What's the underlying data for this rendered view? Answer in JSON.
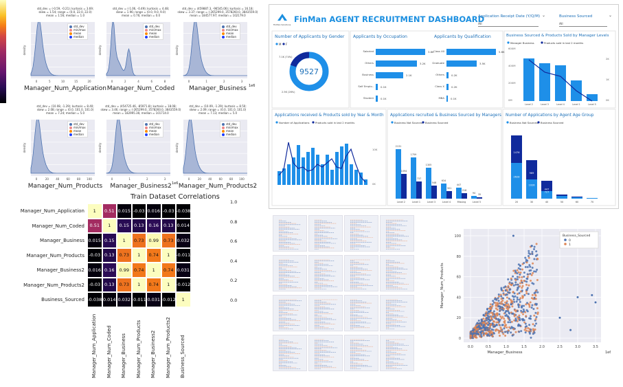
{
  "distributions": [
    {
      "name": "Manager_Num_Application",
      "stats": "std_dev = (-0.59, -0.21); kurtosis = 3.69;\nskew = 1.54; range = (0.0, 22.0, 22.0)\nmean = 1.56; median = 1.0",
      "xticks": [
        "0",
        "5",
        "10",
        "15",
        "20"
      ],
      "ylabel": "density"
    },
    {
      "name": "Manager_Num_Coded",
      "stats": "std_dev = (-1.06, -0.49); kurtosis = 4.48;\nskew = 1.96; range = (0.0, 9.0, 9.0)\nmean = 0.76; median = 0.0",
      "xticks": [
        "0",
        "2",
        "4",
        "6",
        "8"
      ],
      "ylabel": "density"
    },
    {
      "name": "Manager_Business",
      "stats": "std_dev = (459887.3, -96545.06); kurtosis = 16.18;\nskew = 3.37; range = (-265299.0, 3578260.0, 3843559.0)\nmean = 184577.97; median = 102179.0",
      "xticks": [
        "0",
        "1",
        "2",
        "3"
      ],
      "ylabel": "density",
      "offset": "1e6"
    },
    {
      "name": "Manager_Num_Products",
      "stats": "std_dev = (10.08, -1.29); kurtosis = 8.40;\nskew = 2.08; range = (0.0, 101.0, 101.0)\nmean = 7.24; median = 5.0",
      "xticks": [
        "0",
        "20",
        "40",
        "60",
        "80",
        "100"
      ],
      "ylabel": "density"
    },
    {
      "name": "Manager_Business2",
      "stats": "std_dev = (454725.46, -85971.8); kurtosis = 18.08;\nskew = 3.46; range = (-265299.0, 3578260.0, 3843559.0)\nmean = 182995.36; median = 101714.0",
      "xticks": [
        "0",
        "1",
        "2",
        "3"
      ],
      "ylabel": "density",
      "offset": "1e6"
    },
    {
      "name": "Manager_Num_Products2",
      "stats": "std_dev = (10.09, -1.29); kurtosis = 8.50;\nskew = 2.09; range = (0.0, 101.0, 101.0)\nmean = 7.13; median = 5.0",
      "xticks": [
        "0",
        "20",
        "40",
        "60",
        "80",
        "100"
      ],
      "ylabel": "density"
    }
  ],
  "dist_legend": [
    "std_dev",
    "min/max",
    "mean",
    "median"
  ],
  "chart_data": [
    {
      "type": "heatmap",
      "title": "Train Dataset Correlations",
      "labels": [
        "Manager_Num_Application",
        "Manager_Num_Coded",
        "Manager_Business",
        "Manager_Num_Products",
        "Manager_Business2",
        "Manager_Num_Products2",
        "Business_Sourced"
      ],
      "values": [
        [
          1,
          0.51,
          0.015,
          -0.03,
          0.016,
          -0.03,
          -0.038
        ],
        [
          0.51,
          1,
          0.15,
          0.13,
          0.16,
          0.13,
          0.014
        ],
        [
          0.015,
          0.15,
          1,
          0.73,
          0.99,
          0.73,
          0.032
        ],
        [
          -0.03,
          0.13,
          0.73,
          1,
          0.74,
          1,
          -0.011
        ],
        [
          0.016,
          0.16,
          0.99,
          0.74,
          1,
          0.74,
          0.031
        ],
        [
          -0.03,
          0.13,
          0.73,
          1,
          0.74,
          1,
          -0.012
        ],
        [
          -0.038,
          0.014,
          0.032,
          -0.011,
          0.031,
          -0.012,
          1
        ]
      ],
      "colorbar_ticks": [
        "1.0",
        "0.8",
        "0.6",
        "0.4",
        "0.2",
        "0.0"
      ]
    },
    {
      "type": "scatter",
      "xlabel": "Manager_Business",
      "ylabel": "Manager_Num_Products",
      "x_offset": "1e6",
      "xticks": [
        "0.0",
        "0.5",
        "1.0",
        "1.5",
        "2.0",
        "2.5",
        "3.0",
        "3.5"
      ],
      "yticks": [
        "0",
        "20",
        "40",
        "60",
        "80",
        "100"
      ],
      "legend_title": "Business_Sourced",
      "legend": [
        "0",
        "1"
      ],
      "colors": [
        "#4c72b0",
        "#dd8452"
      ]
    }
  ],
  "dashboard": {
    "title": "FinMan AGENT RECRUITMENT DASHBOARD",
    "logo_text": "FinMan Solutions",
    "filter1_label": "Application Receipt Date (Y/Q/M)",
    "filter1_value": "All",
    "filter2_label": "Business Sourced",
    "filter2_value": "All",
    "gender": {
      "title": "Number of Applicants by Gender",
      "legend": [
        "M",
        "F"
      ],
      "total": "9527",
      "label_m": "7.1K (74%)",
      "label_f": "2.5K (26%)"
    },
    "occupation": {
      "title": "Applicants by Occupation",
      "categories": [
        "Salaried",
        "Others",
        "Business",
        "Self Emplo..",
        "Student"
      ],
      "labels": [
        "3.8K",
        "3.2K",
        "2.1K",
        "0.1K",
        "0.1K"
      ]
    },
    "qualification": {
      "title": "Applicants by Qualification",
      "categories": [
        "Class XII",
        "Graduate",
        "Others",
        "Class X",
        "MBA"
      ],
      "labels": [
        "5.8K",
        "3.5K",
        "0.2K",
        "0.2K",
        "0.1K"
      ]
    },
    "manager_levels": {
      "title": "Business Sourced & Products Sold by Manager Levels",
      "legend": [
        "Manager Business",
        "Products sold in last 2 months"
      ],
      "yticks_left": [
        "600M",
        "400M",
        "200M",
        "0M"
      ],
      "yticks_right": [
        "2K",
        "1K",
        "0K"
      ],
      "categories": [
        "Level 2",
        "Level 3",
        "Level 4",
        "Level 1",
        "Level 5"
      ]
    },
    "year_month": {
      "title": "Applications received & Products sold by Year & Month",
      "legend": [
        "Number of Applications",
        "Products sold in last 2 months"
      ],
      "yticks": [
        "10K",
        "0K"
      ]
    },
    "recruited": {
      "title": "Applications recruited & Business Sourced by Managers",
      "legend": [
        "Business Not Sourced",
        "Business Sourced"
      ],
      "categories": [
        "Level 2",
        "Level 1",
        "Level 3",
        "Level 4",
        "Missing",
        "Level 5"
      ],
      "labels_top": [
        "2131",
        "1759",
        "1305",
        "634",
        "447",
        "94"
      ],
      "labels_bot": [
        "1094",
        "737",
        "548",
        "301",
        "218",
        "35"
      ]
    },
    "age_group": {
      "title": "Number of Applications by Agent Age Group",
      "legend": [
        "Business Not Sourced",
        "Business Sourced"
      ],
      "categories": [
        "20",
        "30",
        "40",
        "50",
        "60",
        "70"
      ],
      "labels_top": [
        "1476",
        "969",
        "447"
      ],
      "labels_bot": [
        "2628",
        "1026",
        "727"
      ]
    }
  }
}
